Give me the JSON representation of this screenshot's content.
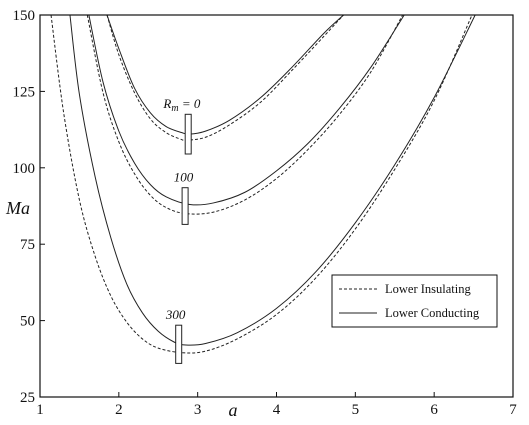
{
  "chart_data": {
    "type": "line",
    "title": "",
    "xlabel": "a",
    "ylabel": "Ma",
    "xlim": [
      1,
      7
    ],
    "ylim": [
      25,
      150
    ],
    "xticks": [
      "1",
      "2",
      "3",
      "4",
      "5",
      "6",
      "7"
    ],
    "yticks": [
      "25",
      "50",
      "75",
      "100",
      "125",
      "150"
    ],
    "grid": false,
    "legend_position": "bottom-right",
    "legend": [
      {
        "label": "Lower Insulating",
        "style": "dashed"
      },
      {
        "label": "Lower Conducting",
        "style": "solid"
      }
    ],
    "annotations": [
      {
        "label": "R",
        "sub": "m",
        "suffix": " = 0",
        "x": 2.8,
        "y": 119.5
      },
      {
        "label": "100",
        "x": 2.82,
        "y": 95.5
      },
      {
        "label": "300",
        "x": 2.72,
        "y": 50.5
      }
    ],
    "series": [
      {
        "group": "Rm=0",
        "style": "solid",
        "min_x": 2.9,
        "min_y": 111,
        "x": [
          1.85,
          2.0,
          2.2,
          2.4,
          2.6,
          2.8,
          2.9,
          3.1,
          3.4,
          3.8,
          4.2,
          4.6,
          4.85
        ],
        "y": [
          150,
          139,
          126,
          118,
          113.5,
          111.5,
          111,
          112,
          115.5,
          123,
          133,
          144,
          150
        ]
      },
      {
        "group": "Rm=0",
        "style": "dashed",
        "min_x": 2.85,
        "min_y": 109,
        "x": [
          1.85,
          2.0,
          2.2,
          2.4,
          2.6,
          2.8,
          2.85,
          3.1,
          3.4,
          3.8,
          4.2,
          4.6,
          4.85
        ],
        "y": [
          150,
          137,
          124.5,
          116,
          111.5,
          109.2,
          109,
          110,
          114,
          121.5,
          132,
          143,
          150
        ]
      },
      {
        "group": "Rm=100",
        "style": "solid",
        "min_x": 2.9,
        "min_y": 88,
        "x": [
          1.62,
          1.8,
          2.0,
          2.2,
          2.4,
          2.6,
          2.9,
          3.2,
          3.6,
          4.0,
          4.4,
          4.8,
          5.2,
          5.62
        ],
        "y": [
          150,
          128,
          112,
          101.5,
          94.5,
          90.5,
          88,
          88.5,
          92,
          99,
          108,
          119.5,
          133,
          150
        ]
      },
      {
        "group": "Rm=100",
        "style": "dashed",
        "min_x": 2.85,
        "min_y": 85,
        "x": [
          1.6,
          1.8,
          2.0,
          2.2,
          2.4,
          2.6,
          2.85,
          3.2,
          3.6,
          4.0,
          4.4,
          4.8,
          5.2,
          5.6
        ],
        "y": [
          150,
          124.5,
          108.5,
          98,
          91,
          87,
          85,
          85.5,
          89.5,
          96.5,
          106,
          117.5,
          131.5,
          150
        ]
      },
      {
        "group": "Rm=300",
        "style": "solid",
        "min_x": 2.85,
        "min_y": 42,
        "x": [
          1.38,
          1.5,
          1.7,
          1.9,
          2.1,
          2.3,
          2.5,
          2.7,
          2.85,
          3.1,
          3.5,
          4.0,
          4.5,
          5.0,
          5.5,
          6.0,
          6.52
        ],
        "y": [
          150,
          124,
          97,
          77,
          62,
          52.5,
          46.5,
          43,
          42,
          42.5,
          46,
          54,
          66,
          82,
          101,
          123,
          150
        ]
      },
      {
        "group": "Rm=300",
        "style": "dashed",
        "min_x": 2.8,
        "min_y": 39.5,
        "x": [
          1.14,
          1.3,
          1.5,
          1.7,
          1.9,
          2.1,
          2.3,
          2.5,
          2.8,
          3.1,
          3.5,
          4.0,
          4.5,
          5.0,
          5.5,
          6.0,
          6.48
        ],
        "y": [
          150,
          118,
          89.5,
          71,
          58,
          49.5,
          44,
          41,
          39.5,
          40,
          44,
          52,
          64,
          80,
          99.5,
          122,
          150
        ]
      }
    ],
    "markers": [
      {
        "x": 2.88,
        "y1": 104.5,
        "y2": 117.5
      },
      {
        "x": 2.84,
        "y1": 81.5,
        "y2": 93.5
      },
      {
        "x": 2.76,
        "y1": 36,
        "y2": 48.5
      }
    ]
  }
}
